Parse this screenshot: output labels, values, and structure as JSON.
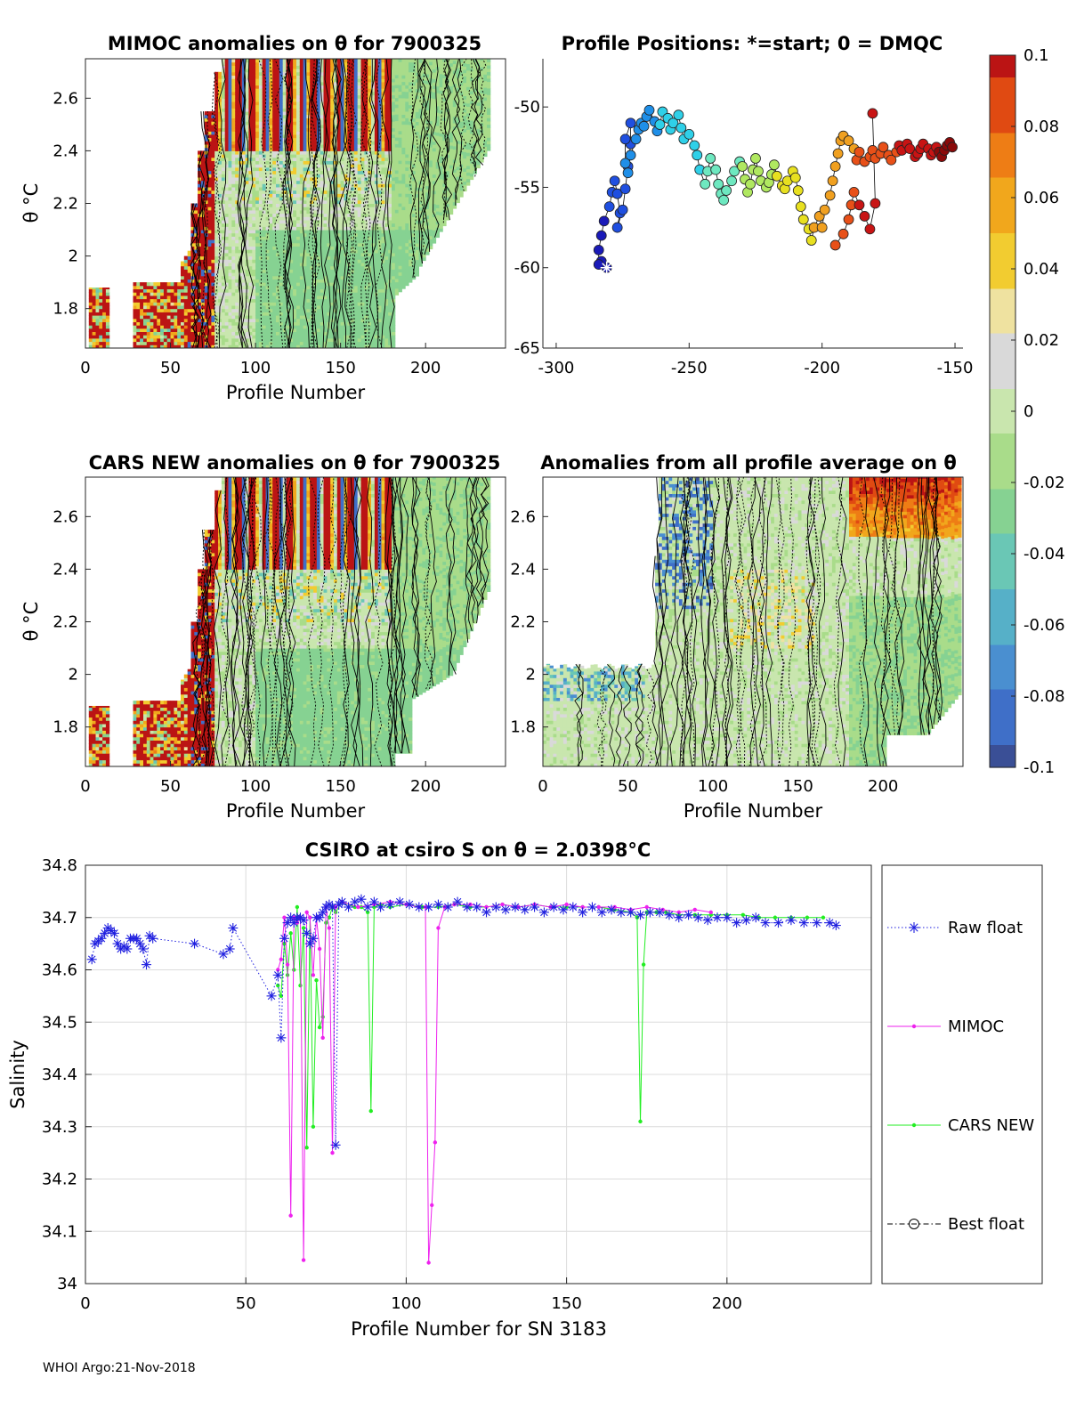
{
  "footer": "WHOI Argo:21-Nov-2018",
  "colors": {
    "raw": "#1f1fdf",
    "mimoc": "#ee22ee",
    "cars": "#22ee22",
    "best": "#000000",
    "axis": "#262626",
    "grid": "#dcdcdc",
    "colormap": [
      "#3a4f96",
      "#3f6fc8",
      "#4a8fd0",
      "#56b0c8",
      "#6ac7b5",
      "#86d292",
      "#a9dc8a",
      "#c9e6ae",
      "#d9d9d9",
      "#efe2a0",
      "#f2cc30",
      "#f1a71c",
      "#ee7d15",
      "#e04a12",
      "#bb1414"
    ]
  },
  "chart_data": [
    {
      "id": "mimoc",
      "type": "heatmap",
      "title": "MIMOC anomalies on θ  for 7900325",
      "xlabel": "Profile Number",
      "ylabel": "θ °C",
      "xlim": [
        0,
        247
      ],
      "ylim": [
        1.65,
        2.75
      ],
      "xticks": [
        0,
        50,
        100,
        150,
        200
      ],
      "yticks": [
        1.8,
        2,
        2.2,
        2.4,
        2.6
      ],
      "ytick_labels": [
        "1.8",
        "2",
        "2.2",
        "2.4",
        "2.6"
      ]
    },
    {
      "id": "positions",
      "type": "scatter",
      "title": "Profile Positions: *=start; 0 = DMQC",
      "xlim": [
        -305,
        -147
      ],
      "ylim": [
        -65,
        -47
      ],
      "xticks": [
        -300,
        -250,
        -200,
        -150
      ],
      "yticks": [
        -65,
        -60,
        -55,
        -50
      ],
      "ytick_labels": [
        "-65",
        "-60",
        "-55",
        "-50"
      ],
      "x": [
        -281,
        -283,
        -284,
        -284,
        -283,
        -282,
        -280,
        -279,
        -278,
        -277,
        -276,
        -277,
        -275,
        -274,
        -273,
        -272,
        -272,
        -274,
        -274,
        -273,
        -272,
        -270,
        -269,
        -268,
        -267,
        -266,
        -265,
        -263,
        -262,
        -261,
        -260,
        -258,
        -257,
        -256,
        -254,
        -253,
        -252,
        -250,
        -248,
        -247,
        -246,
        -244,
        -243,
        -242,
        -240,
        -239,
        -238,
        -237,
        -236,
        -234,
        -233,
        -231,
        -230,
        -229,
        -228,
        -227,
        -226,
        -225,
        -224,
        -223,
        -221,
        -220,
        -219,
        -218,
        -217,
        -215,
        -214,
        -213,
        -211,
        -210,
        -209,
        -208,
        -207,
        -205,
        -204,
        -203,
        -201,
        -200,
        -199,
        -197,
        -196,
        -195,
        -194,
        -193,
        -192,
        -190,
        -188,
        -187,
        -186,
        -184,
        -182,
        -181,
        -180,
        -178,
        -177,
        -175,
        -174,
        -172,
        -171,
        -170,
        -168,
        -167,
        -165,
        -164,
        -163,
        -162,
        -160,
        -159,
        -158,
        -157,
        -156,
        -155,
        -154,
        -153,
        -152,
        -151
      ],
      "y": [
        -60.0,
        -59.6,
        -59.8,
        -58.9,
        -58.0,
        -57.1,
        -56.2,
        -55.3,
        -54.6,
        -55.4,
        -56.6,
        -57.5,
        -56.4,
        -55.1,
        -53.7,
        -52.3,
        -51.0,
        -52.0,
        -53.5,
        -54.1,
        -53.0,
        -52.0,
        -51.4,
        -51.0,
        -51.2,
        -50.6,
        -50.2,
        -50.9,
        -51.5,
        -51.1,
        -50.3,
        -50.7,
        -51.4,
        -51.0,
        -50.5,
        -51.3,
        -52.0,
        -51.7,
        -52.4,
        -53.0,
        -53.9,
        -54.8,
        -54.0,
        -53.2,
        -53.9,
        -54.8,
        -55.4,
        -55.8,
        -55.2,
        -54.6,
        -54.0,
        -53.4,
        -53.7,
        -54.5,
        -55.3,
        -54.8,
        -53.9,
        -53.2,
        -54.0,
        -54.6,
        -55.0,
        -54.7,
        -54.2,
        -53.6,
        -54.3,
        -54.9,
        -55.1,
        -54.6,
        -54.0,
        -54.4,
        -55.2,
        -56.2,
        -57.0,
        -57.6,
        -58.3,
        -57.5,
        -56.8,
        -57.5,
        -56.4,
        -55.5,
        -54.6,
        -53.7,
        -52.9,
        -52.1,
        -51.8,
        -52.1,
        -52.6,
        -53.3,
        -52.8,
        -53.4,
        -53.1,
        -52.7,
        -53.2,
        -52.9,
        -52.5,
        -53.0,
        -53.3,
        -52.8,
        -52.4,
        -52.7,
        -52.3,
        -52.6,
        -53.1,
        -52.9,
        -52.6,
        -52.3,
        -52.6,
        -53.0,
        -52.8,
        -52.5,
        -52.8,
        -53.1,
        -52.7,
        -52.4,
        -52.2,
        -52.5
      ],
      "x2": [
        -195,
        -192,
        -190,
        -189,
        -188,
        -186,
        -184,
        -182,
        -180,
        -181
      ],
      "y2": [
        -58.6,
        -57.9,
        -57.0,
        -56.1,
        -55.3,
        -56.1,
        -56.8,
        -57.6,
        -56.0,
        -50.4
      ]
    },
    {
      "id": "colorbar",
      "type": "heatmap",
      "vmin": -0.1,
      "vmax": 0.1,
      "tick_labels": [
        "0.1",
        "0.08",
        "0.06",
        "0.04",
        "0.02",
        "0",
        "-0.02",
        "-0.04",
        "-0.06",
        "-0.08",
        "-0.1"
      ]
    },
    {
      "id": "cars",
      "type": "heatmap",
      "title": "CARS NEW anomalies on θ for 7900325",
      "xlabel": "Profile Number",
      "ylabel": "θ °C",
      "xlim": [
        0,
        247
      ],
      "ylim": [
        1.65,
        2.75
      ],
      "xticks": [
        0,
        50,
        100,
        150,
        200
      ],
      "yticks": [
        1.8,
        2,
        2.2,
        2.4,
        2.6
      ],
      "ytick_labels": [
        "1.8",
        "2",
        "2.2",
        "2.4",
        "2.6"
      ]
    },
    {
      "id": "allavg",
      "type": "heatmap",
      "title": "Anomalies from all profile average on θ",
      "xlabel": "Profile Number",
      "xlim": [
        0,
        247
      ],
      "ylim": [
        1.65,
        2.75
      ],
      "xticks": [
        0,
        50,
        100,
        150,
        200
      ],
      "yticks": [
        1.8,
        2,
        2.2,
        2.4,
        2.6
      ],
      "ytick_labels": [
        "1.8",
        "2",
        "2.2",
        "2.4",
        "2.6"
      ]
    },
    {
      "id": "salinity",
      "type": "line",
      "title": "CSIRO at csiro S on θ = 2.0398°C",
      "xlabel": "Profile Number for SN 3183",
      "ylabel": "Salinity",
      "xlim": [
        0,
        245
      ],
      "ylim": [
        34.0,
        34.8
      ],
      "xticks": [
        0,
        50,
        100,
        150,
        200
      ],
      "yticks": [
        34.0,
        34.1,
        34.2,
        34.3,
        34.4,
        34.5,
        34.6,
        34.7,
        34.8
      ],
      "ytick_labels": [
        "34",
        "34.1",
        "34.2",
        "34.3",
        "34.4",
        "34.5",
        "34.6",
        "34.7",
        "34.8"
      ],
      "legend": [
        "Raw float",
        "MIMOC",
        "CARS NEW",
        "Best float"
      ],
      "raw": {
        "x": [
          2,
          3,
          4,
          5,
          6,
          7,
          8,
          9,
          10,
          11,
          12,
          13,
          14,
          15,
          16,
          17,
          18,
          19,
          20,
          21,
          34,
          43,
          45,
          46,
          58,
          60,
          61,
          62,
          63,
          64,
          65,
          66,
          67,
          68,
          69,
          70,
          71,
          72,
          73,
          74,
          75,
          76,
          77,
          78,
          79,
          80,
          82,
          84,
          86,
          88,
          90,
          92,
          95,
          98,
          101,
          104,
          107,
          110,
          113,
          116,
          119,
          122,
          125,
          128,
          131,
          134,
          137,
          140,
          143,
          146,
          149,
          152,
          155,
          158,
          161,
          164,
          167,
          170,
          173,
          176,
          179,
          182,
          185,
          188,
          191,
          194,
          197,
          200,
          203,
          206,
          209,
          212,
          216,
          220,
          224,
          228,
          232,
          234
        ],
        "y": [
          34.62,
          34.65,
          34.655,
          34.66,
          34.67,
          34.68,
          34.675,
          34.67,
          34.65,
          34.64,
          34.645,
          34.64,
          34.66,
          34.66,
          34.66,
          34.65,
          34.64,
          34.61,
          34.665,
          34.66,
          34.65,
          34.63,
          34.64,
          34.68,
          34.55,
          34.59,
          34.47,
          34.66,
          34.69,
          34.7,
          34.69,
          34.7,
          34.7,
          34.695,
          34.67,
          34.65,
          34.66,
          34.7,
          34.7,
          34.71,
          34.72,
          34.725,
          34.72,
          34.265,
          34.725,
          34.73,
          34.72,
          34.73,
          34.735,
          34.72,
          34.73,
          34.72,
          34.725,
          34.73,
          34.725,
          34.72,
          34.72,
          34.725,
          34.72,
          34.73,
          34.72,
          34.72,
          34.71,
          34.72,
          34.715,
          34.72,
          34.715,
          34.72,
          34.71,
          34.72,
          34.715,
          34.72,
          34.71,
          34.72,
          34.71,
          34.715,
          34.71,
          34.71,
          34.705,
          34.71,
          34.71,
          34.705,
          34.7,
          34.705,
          34.7,
          34.695,
          34.7,
          34.7,
          34.69,
          34.695,
          34.7,
          34.69,
          34.69,
          34.695,
          34.69,
          34.69,
          34.69,
          34.685
        ]
      },
      "mimoc": {
        "x": [
          60,
          61,
          62,
          63,
          64,
          65,
          66,
          67,
          68,
          69,
          70,
          71,
          72,
          73,
          74,
          75,
          76,
          77,
          78,
          80,
          85,
          90,
          95,
          100,
          104,
          106,
          107,
          108,
          109,
          110,
          112,
          115,
          120,
          125,
          130,
          135,
          140,
          145,
          150,
          155,
          160,
          165,
          170,
          175,
          180,
          185,
          190,
          195
        ],
        "y": [
          34.6,
          34.62,
          34.7,
          34.61,
          34.13,
          34.7,
          34.69,
          34.7,
          34.045,
          34.71,
          34.7,
          34.59,
          34.7,
          34.64,
          34.47,
          34.72,
          34.68,
          34.25,
          34.72,
          34.73,
          34.72,
          34.725,
          34.73,
          34.725,
          34.72,
          34.72,
          34.04,
          34.15,
          34.27,
          34.68,
          34.72,
          34.725,
          34.725,
          34.72,
          34.725,
          34.72,
          34.725,
          34.72,
          34.725,
          34.72,
          34.72,
          34.72,
          34.715,
          34.72,
          34.715,
          34.71,
          34.715,
          34.71
        ]
      },
      "cars": {
        "x": [
          60,
          61,
          62,
          63,
          64,
          65,
          66,
          67,
          68,
          69,
          70,
          71,
          72,
          73,
          74,
          75,
          76,
          77,
          78,
          80,
          84,
          86,
          88,
          89,
          90,
          92,
          95,
          100,
          105,
          110,
          115,
          120,
          125,
          130,
          135,
          140,
          145,
          150,
          155,
          160,
          165,
          170,
          172,
          173,
          174,
          175,
          178,
          181,
          185,
          190,
          195,
          200,
          205,
          210,
          215,
          220,
          225,
          230
        ],
        "y": [
          34.57,
          34.55,
          34.65,
          34.59,
          34.67,
          34.6,
          34.72,
          34.57,
          34.68,
          34.26,
          34.7,
          34.3,
          34.58,
          34.49,
          34.51,
          34.69,
          34.7,
          34.72,
          34.71,
          34.73,
          34.72,
          34.72,
          34.71,
          34.33,
          34.72,
          34.725,
          34.72,
          34.725,
          34.72,
          34.72,
          34.725,
          34.72,
          34.72,
          34.725,
          34.72,
          34.725,
          34.72,
          34.72,
          34.72,
          34.72,
          34.715,
          34.71,
          34.7,
          34.31,
          34.61,
          34.71,
          34.71,
          34.71,
          34.705,
          34.705,
          34.705,
          34.705,
          34.705,
          34.7,
          34.7,
          34.7,
          34.7,
          34.7
        ]
      }
    }
  ]
}
